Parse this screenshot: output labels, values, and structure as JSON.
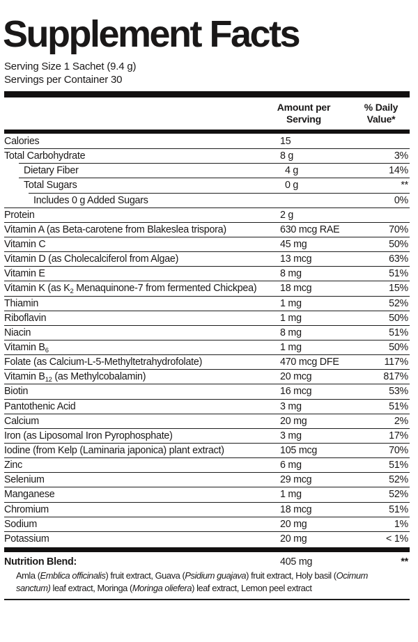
{
  "title": "Supplement Facts",
  "serving": {
    "size_line": "Serving Size 1 Sachet (9.4 g)",
    "container_line": "Servings per Container 30"
  },
  "columns": {
    "amount_line1": "Amount per",
    "amount_line2": "Serving",
    "dv_line1": "% Daily",
    "dv_line2": "Value*"
  },
  "table": {
    "rows": [
      {
        "name": [
          {
            "t": "Calories"
          }
        ],
        "indent": 0,
        "amount": "15",
        "dv": ""
      },
      {
        "name": [
          {
            "t": "Total Carbohydrate"
          }
        ],
        "indent": 0,
        "amount": "8 g",
        "dv": "3%"
      },
      {
        "name": [
          {
            "t": "Dietary Fiber"
          }
        ],
        "indent": 1,
        "amount": "4 g",
        "dv": "14%"
      },
      {
        "name": [
          {
            "t": "Total Sugars"
          }
        ],
        "indent": 1,
        "amount": "0 g",
        "dv": "**"
      },
      {
        "name": [
          {
            "t": "Includes 0 g Added Sugars"
          }
        ],
        "indent": 2,
        "amount": "",
        "dv": "0%"
      },
      {
        "name": [
          {
            "t": "Protein"
          }
        ],
        "indent": 0,
        "amount": "2 g",
        "dv": ""
      },
      {
        "name": [
          {
            "t": "Vitamin A (as Beta-carotene from Blakeslea trispora)"
          }
        ],
        "indent": 0,
        "amount": "630 mcg RAE",
        "dv": "70%"
      },
      {
        "name": [
          {
            "t": "Vitamin C"
          }
        ],
        "indent": 0,
        "amount": "45 mg",
        "dv": "50%"
      },
      {
        "name": [
          {
            "t": "Vitamin D (as Cholecalciferol from Algae)"
          }
        ],
        "indent": 0,
        "amount": "13 mcg",
        "dv": "63%"
      },
      {
        "name": [
          {
            "t": "Vitamin E"
          }
        ],
        "indent": 0,
        "amount": "8 mg",
        "dv": "51%"
      },
      {
        "name": [
          {
            "t": "Vitamin K (as K"
          },
          {
            "s": "2"
          },
          {
            "t": " Menaquinone-7 from fermented Chickpea)"
          }
        ],
        "indent": 0,
        "amount": "18 mcg",
        "dv": "15%"
      },
      {
        "name": [
          {
            "t": "Thiamin"
          }
        ],
        "indent": 0,
        "amount": "1 mg",
        "dv": "52%"
      },
      {
        "name": [
          {
            "t": "Riboflavin"
          }
        ],
        "indent": 0,
        "amount": "1 mg",
        "dv": "50%"
      },
      {
        "name": [
          {
            "t": "Niacin"
          }
        ],
        "indent": 0,
        "amount": "8 mg",
        "dv": "51%"
      },
      {
        "name": [
          {
            "t": "Vitamin B"
          },
          {
            "s": "6"
          }
        ],
        "indent": 0,
        "amount": "1 mg",
        "dv": "50%"
      },
      {
        "name": [
          {
            "t": "Folate (as Calcium-L-5-Methyltetrahydrofolate)"
          }
        ],
        "indent": 0,
        "amount": "470 mcg DFE",
        "dv": "117%"
      },
      {
        "name": [
          {
            "t": "Vitamin B"
          },
          {
            "s": "12"
          },
          {
            "t": " (as Methylcobalamin)"
          }
        ],
        "indent": 0,
        "amount": "20 mcg",
        "dv": "817%"
      },
      {
        "name": [
          {
            "t": "Biotin"
          }
        ],
        "indent": 0,
        "amount": "16 mcg",
        "dv": "53%"
      },
      {
        "name": [
          {
            "t": "Pantothenic Acid"
          }
        ],
        "indent": 0,
        "amount": "3 mg",
        "dv": "51%"
      },
      {
        "name": [
          {
            "t": "Calcium"
          }
        ],
        "indent": 0,
        "amount": "20 mg",
        "dv": "2%"
      },
      {
        "name": [
          {
            "t": "Iron (as Liposomal Iron Pyrophosphate)"
          }
        ],
        "indent": 0,
        "amount": "3 mg",
        "dv": "17%"
      },
      {
        "name": [
          {
            "t": "Iodine (from Kelp (Laminaria japonica) plant extract)"
          }
        ],
        "indent": 0,
        "amount": "105 mcg",
        "dv": "70%"
      },
      {
        "name": [
          {
            "t": "Zinc"
          }
        ],
        "indent": 0,
        "amount": "6 mg",
        "dv": "51%"
      },
      {
        "name": [
          {
            "t": "Selenium"
          }
        ],
        "indent": 0,
        "amount": "29 mcg",
        "dv": "52%"
      },
      {
        "name": [
          {
            "t": "Manganese"
          }
        ],
        "indent": 0,
        "amount": "1 mg",
        "dv": "52%"
      },
      {
        "name": [
          {
            "t": "Chromium"
          }
        ],
        "indent": 0,
        "amount": "18 mcg",
        "dv": "51%"
      },
      {
        "name": [
          {
            "t": "Sodium"
          }
        ],
        "indent": 0,
        "amount": "20 mg",
        "dv": "1%"
      },
      {
        "name": [
          {
            "t": "Potassium"
          }
        ],
        "indent": 0,
        "amount": "20 mg",
        "dv": "< 1%"
      }
    ]
  },
  "blend": {
    "label": "Nutrition Blend:",
    "amount": "405 mg",
    "dv": "**",
    "description_lines": [
      [
        {
          "t": "Amla ("
        },
        {
          "i": "Emblica officinalis"
        },
        {
          "t": ") fruit extract, Guava ("
        },
        {
          "i": "Psidium guajava"
        },
        {
          "t": ") fruit extract, Holy basil ("
        },
        {
          "i": "Ocimum"
        }
      ],
      [
        {
          "i": "sanctum)"
        },
        {
          "t": " leaf extract, Moringa ("
        },
        {
          "i": "Moringa oliefera"
        },
        {
          "t": ") leaf extract, Lemon peel extract"
        }
      ]
    ]
  },
  "colors": {
    "background": "#ffffff",
    "text": "#1a1818",
    "rule": "#1c1c1c",
    "bar": "#121010"
  }
}
